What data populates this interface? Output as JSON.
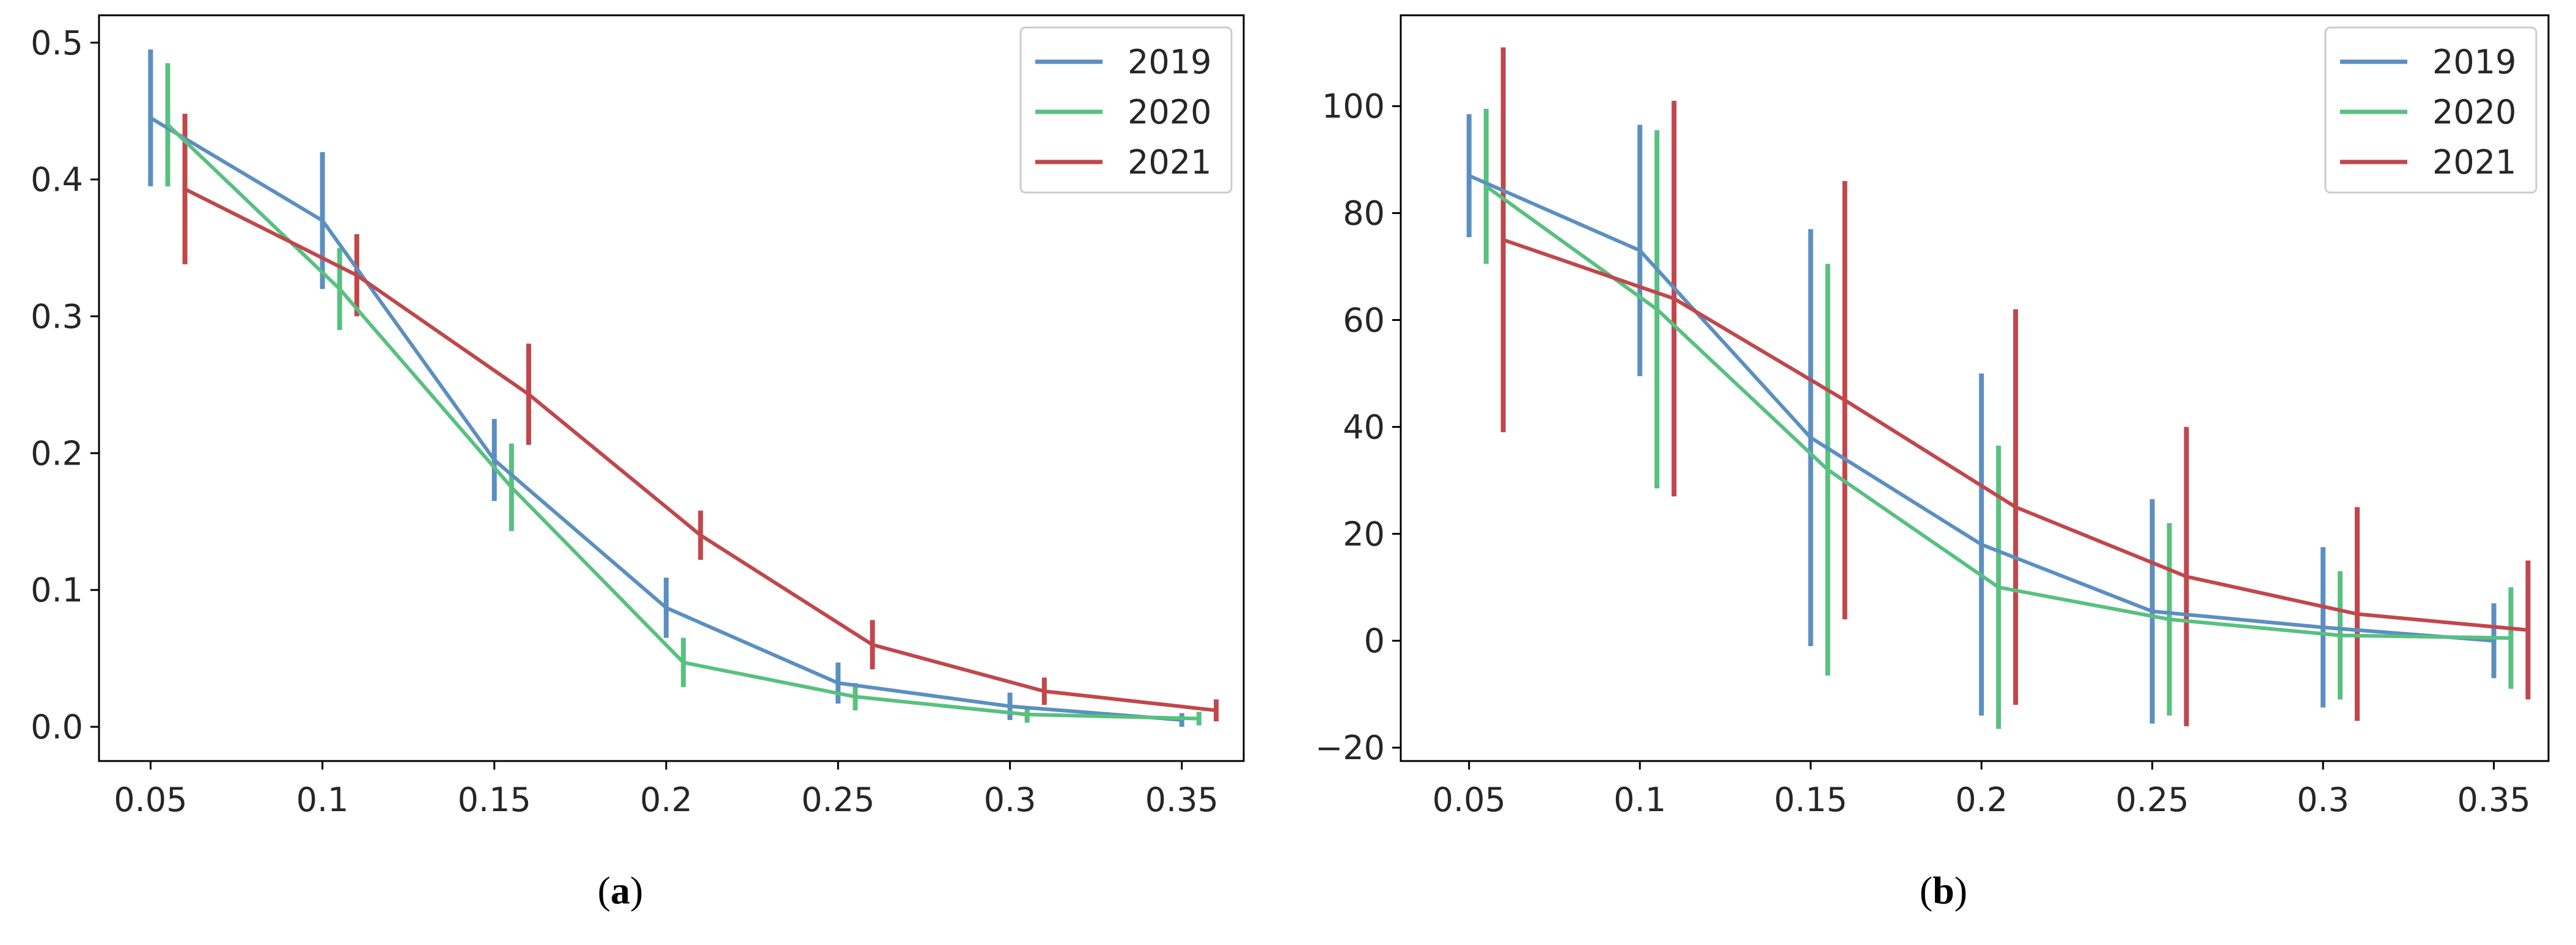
{
  "chart_data": [
    {
      "type": "line",
      "subplot_label": "a",
      "title": "",
      "xlabel": "",
      "ylabel": "",
      "x": [
        0.05,
        0.1,
        0.15,
        0.2,
        0.25,
        0.3,
        0.35
      ],
      "x_tick_labels": [
        "0.05",
        "0.1",
        "0.15",
        "0.2",
        "0.25",
        "0.3",
        "0.35"
      ],
      "xlim": [
        0.035,
        0.368
      ],
      "ylim": [
        -0.025,
        0.52
      ],
      "y_ticks": [
        0.0,
        0.1,
        0.2,
        0.3,
        0.4,
        0.5
      ],
      "y_tick_labels": [
        "0.0",
        "0.1",
        "0.2",
        "0.3",
        "0.4",
        "0.5"
      ],
      "legend_position": "top-right",
      "series": [
        {
          "name": "2019",
          "color": "#5b8fc0",
          "x_offset": 0.0,
          "values": [
            0.445,
            0.37,
            0.195,
            0.087,
            0.032,
            0.015,
            0.005
          ],
          "errors": [
            0.05,
            0.05,
            0.03,
            0.022,
            0.015,
            0.01,
            0.005
          ]
        },
        {
          "name": "2020",
          "color": "#59c080",
          "x_offset": 0.005,
          "values": [
            0.44,
            0.32,
            0.175,
            0.047,
            0.022,
            0.009,
            0.006
          ],
          "errors": [
            0.045,
            0.03,
            0.032,
            0.018,
            0.01,
            0.006,
            0.005
          ]
        },
        {
          "name": "2021",
          "color": "#c0474b",
          "x_offset": 0.01,
          "values": [
            0.393,
            0.33,
            0.243,
            0.14,
            0.06,
            0.026,
            0.012
          ],
          "errors": [
            0.055,
            0.03,
            0.037,
            0.018,
            0.018,
            0.01,
            0.008
          ]
        }
      ]
    },
    {
      "type": "line",
      "subplot_label": "b",
      "title": "",
      "xlabel": "",
      "ylabel": "",
      "x": [
        0.05,
        0.1,
        0.15,
        0.2,
        0.25,
        0.3,
        0.35
      ],
      "x_tick_labels": [
        "0.05",
        "0.1",
        "0.15",
        "0.2",
        "0.25",
        "0.3",
        "0.35"
      ],
      "xlim": [
        0.03,
        0.366
      ],
      "ylim": [
        -22.5,
        117
      ],
      "y_ticks": [
        -20,
        0,
        20,
        40,
        60,
        80,
        100
      ],
      "y_tick_labels": [
        "−20",
        "0",
        "20",
        "40",
        "60",
        "80",
        "100"
      ],
      "legend_position": "top-right",
      "series": [
        {
          "name": "2019",
          "color": "#5b8fc0",
          "x_offset": 0.0,
          "values": [
            87,
            73,
            38,
            18,
            5.5,
            2.5,
            0
          ],
          "errors": [
            11.5,
            23.5,
            39,
            32,
            21,
            15,
            7
          ]
        },
        {
          "name": "2020",
          "color": "#59c080",
          "x_offset": 0.005,
          "values": [
            85,
            62,
            32,
            10,
            4,
            1,
            0.5
          ],
          "errors": [
            14.5,
            33.5,
            38.5,
            26.5,
            18,
            12,
            9.5
          ]
        },
        {
          "name": "2021",
          "color": "#c0474b",
          "x_offset": 0.01,
          "values": [
            75,
            64,
            45,
            25,
            12,
            5,
            2
          ],
          "errors": [
            36,
            37,
            41,
            37,
            28,
            20,
            13
          ]
        }
      ]
    }
  ],
  "captions": [
    "(a)",
    "(b)"
  ]
}
